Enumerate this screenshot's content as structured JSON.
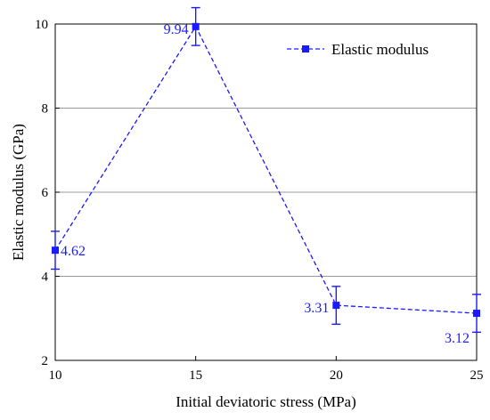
{
  "chart_data": {
    "type": "line",
    "title": "",
    "xlabel": "Initial deviatoric stress (MPa)",
    "ylabel": "Elastic modulus (GPa)",
    "xlim": [
      10,
      25
    ],
    "ylim": [
      2,
      10
    ],
    "xticks": [
      "10",
      "15",
      "20",
      "25"
    ],
    "yticks": [
      "2",
      "4",
      "6",
      "8",
      "10"
    ],
    "grid": "horizontal",
    "legend_position": "top-right",
    "line_style": "dashed",
    "marker": "square",
    "color": "#1a1aff",
    "series": [
      {
        "name": "Elastic modulus",
        "x": [
          10,
          15,
          20,
          25
        ],
        "y": [
          4.62,
          9.94,
          3.31,
          3.12
        ],
        "error": [
          0.45,
          0.45,
          0.45,
          0.45
        ],
        "labels": [
          "4.62",
          "9.94",
          "3.31",
          "3.12"
        ]
      }
    ]
  }
}
